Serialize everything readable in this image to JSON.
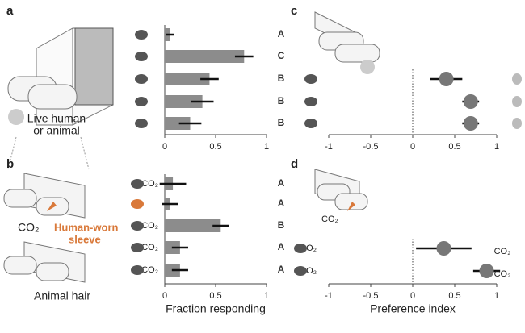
{
  "chart_data": [
    {
      "type": "bar",
      "label": "a",
      "categories": [
        null,
        null,
        null,
        null,
        null
      ],
      "values": [
        0.05,
        0.78,
        0.44,
        0.37,
        0.25
      ],
      "errors": [
        0.04,
        0.09,
        0.09,
        0.11,
        0.11
      ],
      "letters": [
        "A",
        "C",
        "B",
        "B",
        "B"
      ],
      "color": "#8c8c8c",
      "xlim": [
        0,
        1
      ],
      "xticks": [
        0,
        0.5,
        1
      ]
    },
    {
      "type": "bar",
      "label": "b",
      "categories": [
        "CO₂",
        null,
        "CO₂",
        "CO₂",
        "CO₂"
      ],
      "values": [
        0.08,
        0.05,
        0.55,
        0.15,
        0.15
      ],
      "errors": [
        0.13,
        0.08,
        0.08,
        0.08,
        0.08
      ],
      "letters": [
        "A",
        "A",
        "B",
        "A",
        "A"
      ],
      "color": "#8c8c8c",
      "xlim": [
        0,
        1
      ],
      "xticks": [
        0,
        0.5,
        1
      ],
      "xlabel": "Fraction responding"
    },
    {
      "type": "dot",
      "label": "c",
      "categories": [
        null,
        null,
        null
      ],
      "values": [
        0.4,
        0.69,
        0.69
      ],
      "errors": [
        0.19,
        0.1,
        0.1
      ],
      "color": "#777777",
      "xlim": [
        -1,
        1
      ],
      "xticks": [
        -1,
        -0.5,
        0,
        0.5,
        1
      ]
    },
    {
      "type": "dot",
      "label": "d",
      "categories": [
        "CO₂",
        "CO₂"
      ],
      "right_labels": [
        "CO₂",
        "CO₂"
      ],
      "values": [
        0.37,
        0.88
      ],
      "errors": [
        0.33,
        0.16
      ],
      "color": "#777777",
      "xlim": [
        -1,
        1
      ],
      "xticks": [
        -1,
        -0.5,
        0,
        0.5,
        1
      ],
      "xlabel": "Preference index"
    }
  ],
  "illustration": {
    "a_caption_1": "Live human",
    "a_caption_2": "or animal",
    "b_co2": "CO₂",
    "b_sleeve_1": "Human-worn",
    "b_sleeve_2": "sleeve",
    "b_hair": "Animal hair",
    "d_co2": "CO₂"
  }
}
